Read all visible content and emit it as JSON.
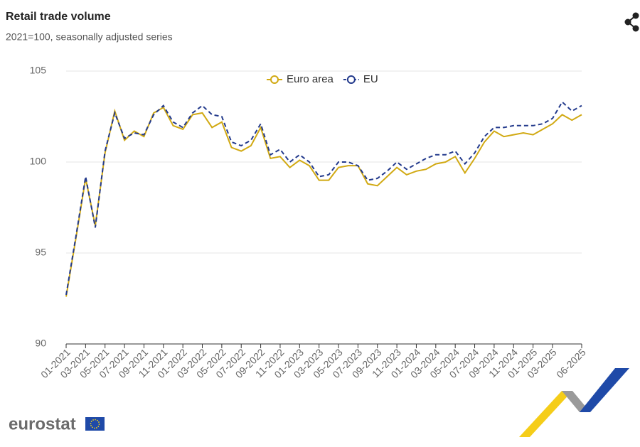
{
  "chart_data": {
    "type": "line",
    "title": "Retail trade volume",
    "subtitle": "2021=100, seasonally adjusted series",
    "categories": [
      "01-2021",
      null,
      "03-2021",
      null,
      "05-2021",
      null,
      "07-2021",
      null,
      "09-2021",
      null,
      "11-2021",
      null,
      "01-2022",
      null,
      "03-2022",
      null,
      "05-2022",
      null,
      "07-2022",
      null,
      "09-2022",
      null,
      "11-2022",
      null,
      "01-2023",
      null,
      "03-2023",
      null,
      "05-2023",
      null,
      "07-2023",
      null,
      "09-2023",
      null,
      "11-2023",
      null,
      "01-2024",
      null,
      "03-2024",
      null,
      "05-2024",
      null,
      "07-2024",
      null,
      "09-2024",
      null,
      "11-2024",
      null,
      "01-2025",
      null,
      "03-2025",
      null,
      null,
      "06-2025"
    ],
    "series": [
      {
        "name": "Euro area",
        "color": "#d1a912",
        "dashed": false,
        "values": [
          92.6,
          95.8,
          99.1,
          96.5,
          100.5,
          102.8,
          101.2,
          101.7,
          101.4,
          102.7,
          103.0,
          102.0,
          101.8,
          102.6,
          102.7,
          101.9,
          102.2,
          100.8,
          100.6,
          100.9,
          101.9,
          100.2,
          100.3,
          99.7,
          100.1,
          99.8,
          99.0,
          99.0,
          99.7,
          99.8,
          99.8,
          98.8,
          98.7,
          99.2,
          99.7,
          99.3,
          99.5,
          99.6,
          99.9,
          100.0,
          100.3,
          99.4,
          100.2,
          101.1,
          101.7,
          101.4,
          101.5,
          101.6,
          101.5,
          101.8,
          102.1,
          102.6,
          102.3,
          102.6
        ]
      },
      {
        "name": "EU",
        "color": "#233a8c",
        "dashed": true,
        "values": [
          92.7,
          95.9,
          99.2,
          96.4,
          100.6,
          102.7,
          101.3,
          101.6,
          101.5,
          102.6,
          103.1,
          102.2,
          101.9,
          102.7,
          103.1,
          102.6,
          102.5,
          101.1,
          100.9,
          101.2,
          102.1,
          100.4,
          100.7,
          100.0,
          100.4,
          100.0,
          99.2,
          99.3,
          100.0,
          100.0,
          99.8,
          99.0,
          99.1,
          99.5,
          100.0,
          99.6,
          99.9,
          100.2,
          100.4,
          100.4,
          100.6,
          99.9,
          100.5,
          101.4,
          101.9,
          101.9,
          102.0,
          102.0,
          102.0,
          102.1,
          102.4,
          103.3,
          102.8,
          103.1
        ]
      }
    ],
    "ylim": [
      90,
      105
    ],
    "yticks": [
      90,
      95,
      100,
      105
    ],
    "grid": true
  },
  "logo": "eurostat"
}
